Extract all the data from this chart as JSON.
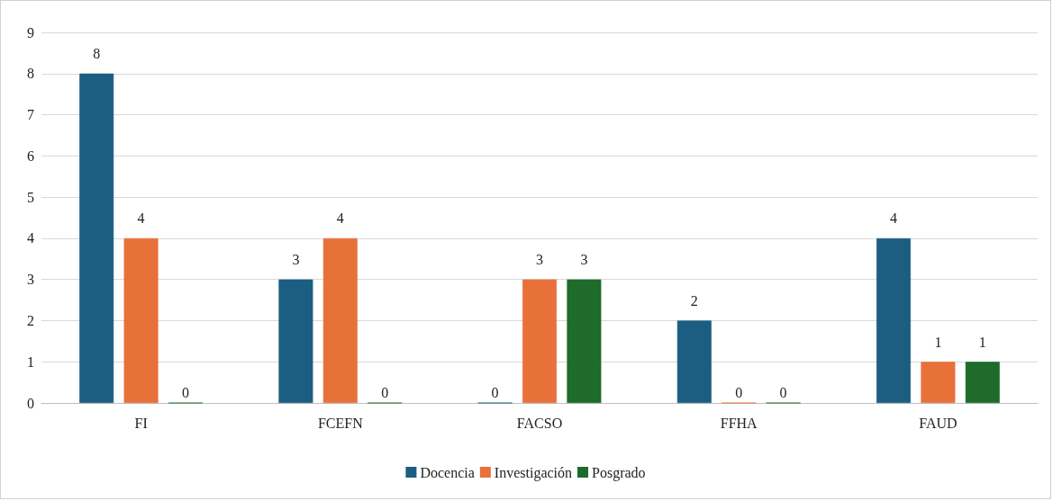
{
  "chart_data": {
    "type": "bar",
    "categories": [
      "FI",
      "FCEFN",
      "FACSO",
      "FFHA",
      "FAUD"
    ],
    "series": [
      {
        "name": "Docencia",
        "color": "#1b5e82",
        "values": [
          8,
          3,
          0,
          2,
          4
        ]
      },
      {
        "name": "Investigación",
        "color": "#e8713a",
        "values": [
          4,
          4,
          3,
          0,
          1
        ]
      },
      {
        "name": "Posgrado",
        "color": "#1e6b2c",
        "values": [
          0,
          0,
          3,
          0,
          1
        ]
      }
    ],
    "ylim": [
      0,
      9
    ],
    "yticks": [
      0,
      1,
      2,
      3,
      4,
      5,
      6,
      7,
      8,
      9
    ],
    "grid": "y",
    "legend": "bottom",
    "data_labels": true
  }
}
